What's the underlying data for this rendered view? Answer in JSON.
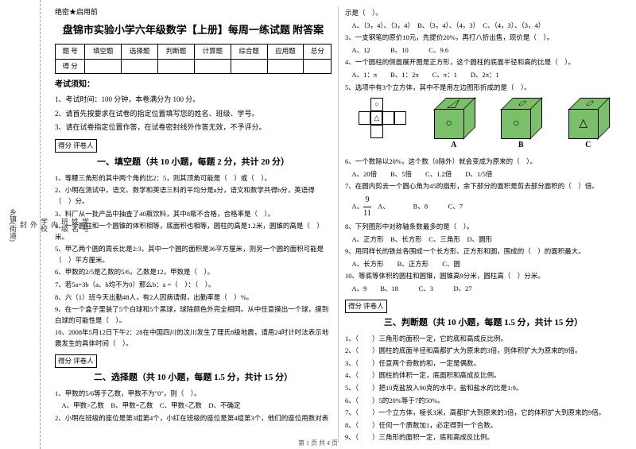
{
  "margin": {
    "labels": [
      "学号",
      "姓名",
      "班级",
      "学校",
      "乡镇(街道)"
    ],
    "fold_marks": [
      "内",
      "外",
      "封",
      "线"
    ]
  },
  "secret": "绝密★启用前",
  "title": "盘锦市实验小学六年级数学【上册】每周一练试题 附答案",
  "score_table": {
    "headers": [
      "题 号",
      "填空题",
      "选择题",
      "判断题",
      "计算题",
      "综合题",
      "应用题",
      "总分"
    ],
    "row_label": "得 分"
  },
  "notice": {
    "title": "考试须知：",
    "items": [
      "1、考试时间：100 分钟，本卷满分为 100 分。",
      "2、请首先按要求在试卷的指定位置填写您的姓名、班级、学号。",
      "3、请在试卷指定位置作答，在试卷密封线外作答无效，不予评分。"
    ]
  },
  "section_box_label": "得分  评卷人",
  "section1": {
    "title": "一、填空题（共 10 小题，每题 2 分，共计 20 分）",
    "questions": [
      "1、等腰三角形的其中两个角的比2：5，则其顶角可能是（　）或（　）。",
      "2、小明在测试中，语文、数学和英语三科的平均分是a分，语文和数学共得b分，英语得（　）分。",
      "3、料厂从一批产品中抽查了40瓶饮料，其中8瓶不合格，合格率是（　）。",
      "4、一个圆柱和一个圆锥的体积相等，底面积也相等，圆柱的高是1.2米，圆锥的高是（　）米。",
      "5、甲乙两个圆的周长比是2:3，其中一个圆的面积是36平方厘米，则另一个圆的面积可能是（　）平方厘米。",
      "6、甲数的2/5是乙数的5/6，乙数是12，甲数是（　）。",
      "7、若5a=3b（a、b均不为0）那么b：a =（　）：（　）。",
      "8、六（1）班今天出勤48人，有2人因病请假，出勤率是（　）%。",
      "9、在一个盒子里装了5个白球和5个黑球，球除颜色外完全相同。从中任意摸出一个球，摸到白球的可能性是（　）。",
      "10、2008年5月12日下午2：28在中国四川的汶川发生了理氏8级地震，请用24时计时法表示地震发生的具体时间（　）。"
    ]
  },
  "section2": {
    "title": "二、选择题（共 10 小题，每题 1.5 分，共计 15 分）",
    "questions": [
      "1、甲数的5/6等于乙数，甲数不为\"0\"，则（　）。",
      "　A、甲数>乙数　B、甲数=乙数　C、甲数<乙数　D、不确定",
      "2、小明在班级的座位是第3组第4个，小红在班级的座位是第4组第3个，他们的座位用数对表"
    ]
  },
  "right_top": [
    "示是（　）。",
    "　A、（3，4）、（3，4）　B、（3，4）、（4，3）　C、（4，3）、（3，4）",
    "3、一支钢笔的原价10元，先提价20%，再打八折出售，现价是（　）。",
    "　A、12　　　B、10　　　C、9.6",
    "4、一个圆柱的侧面展开图是正方形，这个圆柱的底面半径和高的比是（　）。",
    "　A、1：π　　B、1：2π　　C、π：1　　D、2π：1",
    "5、选项中有3个立方体，其中不是用左边图形折成的是（　）。"
  ],
  "cubes": {
    "labels": [
      "A",
      "B",
      "C"
    ],
    "net_symbols": [
      "○",
      "△",
      "",
      "",
      "",
      ""
    ],
    "cube_symbols": [
      {
        "front": "○",
        "top": "△"
      },
      {
        "front": "○",
        "top": "○"
      },
      {
        "front": "△",
        "top": "○"
      }
    ]
  },
  "right_mid": [
    "6、一个数除以20%，这个数（0除外）就会变成为原来的（　）。",
    "　A、20倍　　B、5倍　　C、1.2倍　　D、1/5倍",
    "7、在圆内剪去一个圆心角为45的扇形，余下部分的面积是剪去部分面积的（　）倍。"
  ],
  "fraction": {
    "num": "9",
    "den": "11"
  },
  "right_mid2": [
    "　A、　　　　B、8　　　C、7",
    "8、下列图形中对称轴条数最多的是（　）。",
    "　A、正方形　B、长方形　C、三角形　D、圆形",
    "9、用同样长的铁丝各围成一个长方形、正方形和圆，围成的（　）的面积最大。",
    "　A、长方形　　B、正方形　　C、圆",
    "10、等底等体积的圆柱和圆锥，圆锥高9分米，圆柱高（　）分米。",
    "　A、9　　B、18　　　C、3　　　D、27"
  ],
  "section3": {
    "title": "三、判断题（共 10 小题，每题 1.5 分，共计 15 分）",
    "questions": [
      "1、（　　）三角形的面积一定，它的底和高成反比例。",
      "2、（　　）圆柱的底面半径和高都扩大为原来的3倍，则体积扩大为原来的9倍。",
      "3、（　　）任意两个奇数的和，一定是偶数。",
      "4、（　　）圆柱的体积一定，底面积和高成反比例。",
      "5、（　　）把10克盐放入90克的水中，盐和盐水的比是1:9。",
      "6、（　　）5的20%等于7的50%。",
      "7、（　　）一个立方体，棱长3米，高都扩大到原来的3倍，它的体积扩大到原来的9倍。",
      "8、（　　）任何一个质数加1，必定得到一个合数。",
      "9、（　　）三角形的面积一定，底和高成反比例。"
    ]
  },
  "footer": "第 1 页 共 4 页"
}
